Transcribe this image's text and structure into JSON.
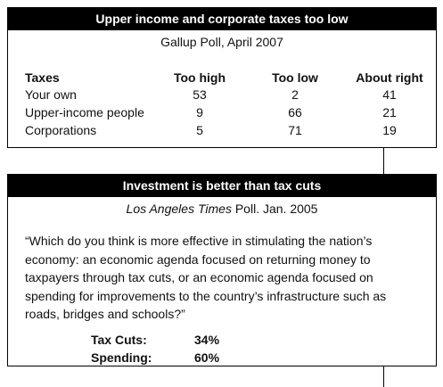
{
  "box1": {
    "title": "Upper income and corporate taxes too low",
    "subtitle": "Gallup Poll, April 2007",
    "table": {
      "header": [
        "Taxes",
        "Too high",
        "Too low",
        "About right"
      ],
      "rows": [
        [
          "Your own",
          "53",
          "2",
          "41"
        ],
        [
          "Upper-income people",
          "9",
          "66",
          "21"
        ],
        [
          "Corporations",
          "5",
          "71",
          "19"
        ]
      ]
    }
  },
  "box2": {
    "title": "Investment is better than tax cuts",
    "subtitle_source": "Los Angeles Times",
    "subtitle_rest": " Poll. Jan. 2005",
    "quote": [
      "“Which do you think is more effective in stimulating the nation’s",
      "economy: an economic agenda focused on returning money to",
      "taxpayers through tax cuts, or an economic agenda focused on",
      "spending for improvements to the country’s infrastructure such as",
      "roads, bridges and schools?”"
    ],
    "results": [
      [
        "Tax Cuts:",
        "34%"
      ],
      [
        "Spending:",
        "60%"
      ]
    ]
  }
}
